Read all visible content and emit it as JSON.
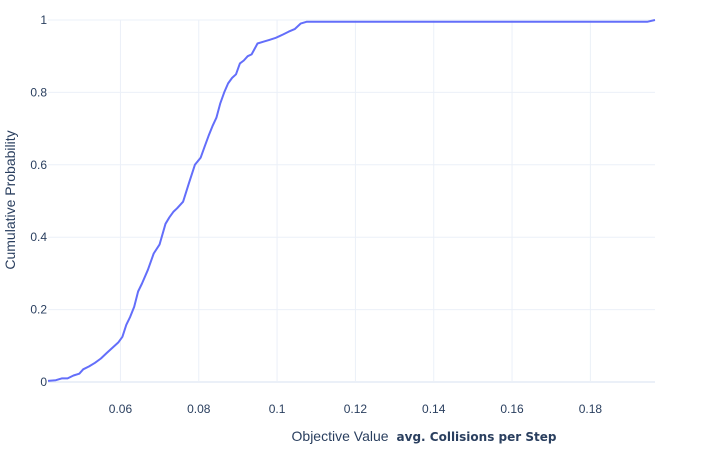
{
  "chart_data": {
    "type": "line",
    "title": "",
    "xlabel": "Objective Value",
    "xlabel_unit": "avg. Collisions per Step",
    "ylabel": "Cumulative Probability",
    "xlim": [
      0.0415,
      0.1965
    ],
    "ylim": [
      0,
      1
    ],
    "x_ticks": [
      0.06,
      0.08,
      0.1,
      0.12,
      0.14,
      0.16,
      0.18
    ],
    "x_tick_labels": [
      "0.06",
      "0.08",
      "0.1",
      "0.12",
      "0.14",
      "0.16",
      "0.18"
    ],
    "y_ticks": [
      0,
      0.2,
      0.4,
      0.6,
      0.8,
      1
    ],
    "y_tick_labels": [
      "0",
      "0.2",
      "0.4",
      "0.6",
      "0.8",
      "1"
    ],
    "grid": true,
    "legend": "none",
    "colors": {
      "line": "#636efa",
      "grid": "#ebf0f8",
      "text": "#2a3f5f",
      "zeroline": "#ebf0f8"
    },
    "series": [
      {
        "x": [
          0.0415,
          0.0435,
          0.045,
          0.0465,
          0.048,
          0.0495,
          0.0505,
          0.052,
          0.0535,
          0.055,
          0.0565,
          0.058,
          0.0595,
          0.0605,
          0.0615,
          0.0625,
          0.0635,
          0.0645,
          0.0655,
          0.067,
          0.0685,
          0.07,
          0.0715,
          0.0725,
          0.0735,
          0.0745,
          0.076,
          0.0775,
          0.079,
          0.0805,
          0.0815,
          0.0825,
          0.0835,
          0.0845,
          0.0855,
          0.0865,
          0.0875,
          0.0885,
          0.0895,
          0.0905,
          0.0915,
          0.0925,
          0.0935,
          0.095,
          0.0965,
          0.098,
          0.0995,
          0.1005,
          0.1015,
          0.103,
          0.1045,
          0.106,
          0.1075,
          0.109,
          0.1105,
          0.1115,
          0.1125,
          0.114,
          0.1155,
          0.12,
          0.13,
          0.14,
          0.15,
          0.16,
          0.17,
          0.18,
          0.19,
          0.1945,
          0.1965
        ],
        "y": [
          0.003,
          0.005,
          0.01,
          0.01,
          0.018,
          0.023,
          0.035,
          0.043,
          0.053,
          0.065,
          0.08,
          0.095,
          0.11,
          0.125,
          0.158,
          0.18,
          0.208,
          0.25,
          0.272,
          0.31,
          0.355,
          0.38,
          0.437,
          0.455,
          0.47,
          0.48,
          0.498,
          0.55,
          0.6,
          0.62,
          0.65,
          0.68,
          0.707,
          0.73,
          0.77,
          0.8,
          0.825,
          0.84,
          0.85,
          0.88,
          0.888,
          0.9,
          0.905,
          0.935,
          0.94,
          0.945,
          0.95,
          0.955,
          0.96,
          0.968,
          0.975,
          0.99,
          0.995,
          0.995,
          0.995,
          0.995,
          0.995,
          0.995,
          0.995,
          0.995,
          0.995,
          0.995,
          0.995,
          0.995,
          0.995,
          0.995,
          0.995,
          0.995,
          1.0
        ]
      }
    ]
  }
}
